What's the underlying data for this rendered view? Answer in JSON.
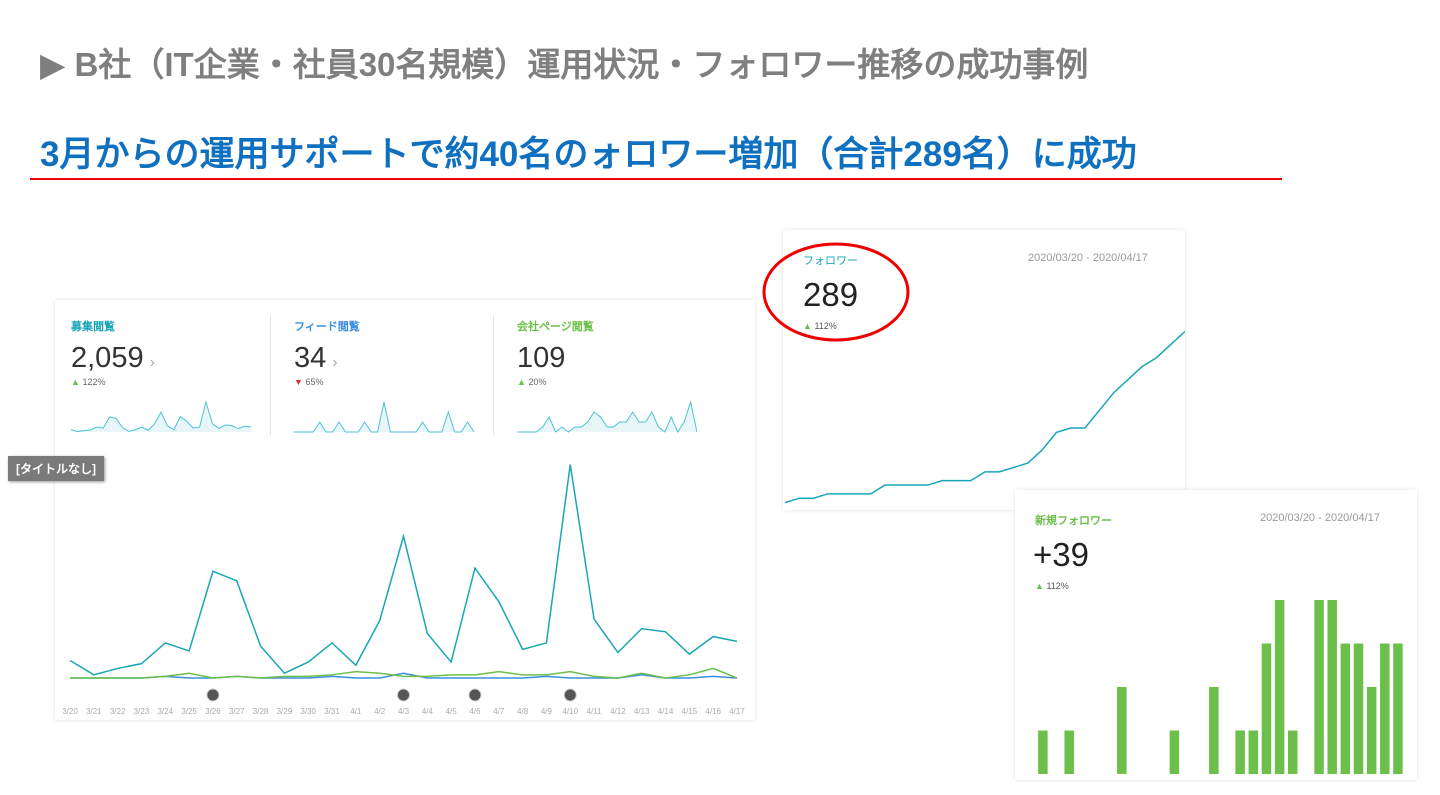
{
  "slide": {
    "title": "▶ B社（IT企業・社員30名規模）運用状況・フォロワー推移の成功事例",
    "subtitle": "3月からの運用サポートで約40名のォロワー増加（合計289名）に成功"
  },
  "kpis": [
    {
      "label": "募集閲覧",
      "value": "2,059",
      "change": "122%",
      "dir": "up",
      "color": "#1aa6b7"
    },
    {
      "label": "フィード閲覧",
      "value": "34",
      "change": "65%",
      "dir": "down",
      "color": "#3b8fe0"
    },
    {
      "label": "会社ページ閲覧",
      "value": "109",
      "change": "20%",
      "dir": "up",
      "color": "#6cc04a"
    }
  ],
  "tag": "[タイトルなし]",
  "followers": {
    "label": "フォロワー",
    "value": "289",
    "change": "112%",
    "date_range": "2020/03/20 - 2020/04/17"
  },
  "new_followers": {
    "label": "新規フォロワー",
    "value": "+39",
    "change": "112%",
    "date_range": "2020/03/20 - 2020/04/17"
  },
  "chart_data": [
    {
      "type": "line",
      "title": "[タイトルなし]",
      "categories": [
        "3/20",
        "3/21",
        "3/22",
        "3/23",
        "3/24",
        "3/25",
        "3/26",
        "3/27",
        "3/28",
        "3/29",
        "3/30",
        "3/31",
        "4/1",
        "4/2",
        "4/3",
        "4/4",
        "4/5",
        "4/6",
        "4/7",
        "4/8",
        "4/9",
        "4/10",
        "4/11",
        "4/12",
        "4/13",
        "4/14",
        "4/15",
        "4/16",
        "4/17"
      ],
      "series": [
        {
          "name": "募集閲覧",
          "color": "#1aa6b7",
          "values": [
            11,
            2,
            6,
            9,
            22,
            17,
            67,
            61,
            20,
            3,
            10,
            22,
            8,
            36,
            89,
            28,
            10,
            69,
            48,
            18,
            22,
            134,
            37,
            16,
            31,
            29,
            15,
            26,
            23
          ]
        },
        {
          "name": "会社ページ閲覧",
          "color": "#6cc04a",
          "values": [
            0,
            0,
            0,
            0,
            1,
            3,
            0,
            1,
            0,
            1,
            1,
            2,
            4,
            3,
            1,
            1,
            2,
            2,
            4,
            2,
            2,
            4,
            1,
            0,
            3,
            0,
            2,
            6,
            0
          ]
        },
        {
          "name": "フィード閲覧",
          "color": "#3b8fe0",
          "values": [
            0,
            0,
            0,
            0,
            1,
            0,
            0,
            1,
            0,
            0,
            0,
            1,
            0,
            0,
            3,
            0,
            0,
            0,
            0,
            0,
            1,
            0,
            0,
            0,
            2,
            0,
            0,
            1,
            0
          ]
        }
      ],
      "ylim": [
        0,
        140
      ],
      "grid": false
    },
    {
      "type": "line",
      "title": "フォロワー",
      "values": [
        250,
        251,
        251,
        252,
        252,
        252,
        252,
        254,
        254,
        254,
        254,
        255,
        255,
        255,
        257,
        257,
        258,
        259,
        262,
        266,
        267,
        267,
        271,
        275,
        278,
        281,
        283,
        286,
        289
      ],
      "ylim": [
        249,
        290
      ]
    },
    {
      "type": "bar",
      "title": "新規フォロワー",
      "values": [
        0,
        1,
        0,
        1,
        0,
        0,
        0,
        2,
        0,
        0,
        0,
        1,
        0,
        0,
        2,
        0,
        1,
        1,
        3,
        4,
        1,
        0,
        4,
        4,
        3,
        3,
        2,
        3,
        3
      ],
      "ylim": [
        0,
        4
      ]
    }
  ]
}
